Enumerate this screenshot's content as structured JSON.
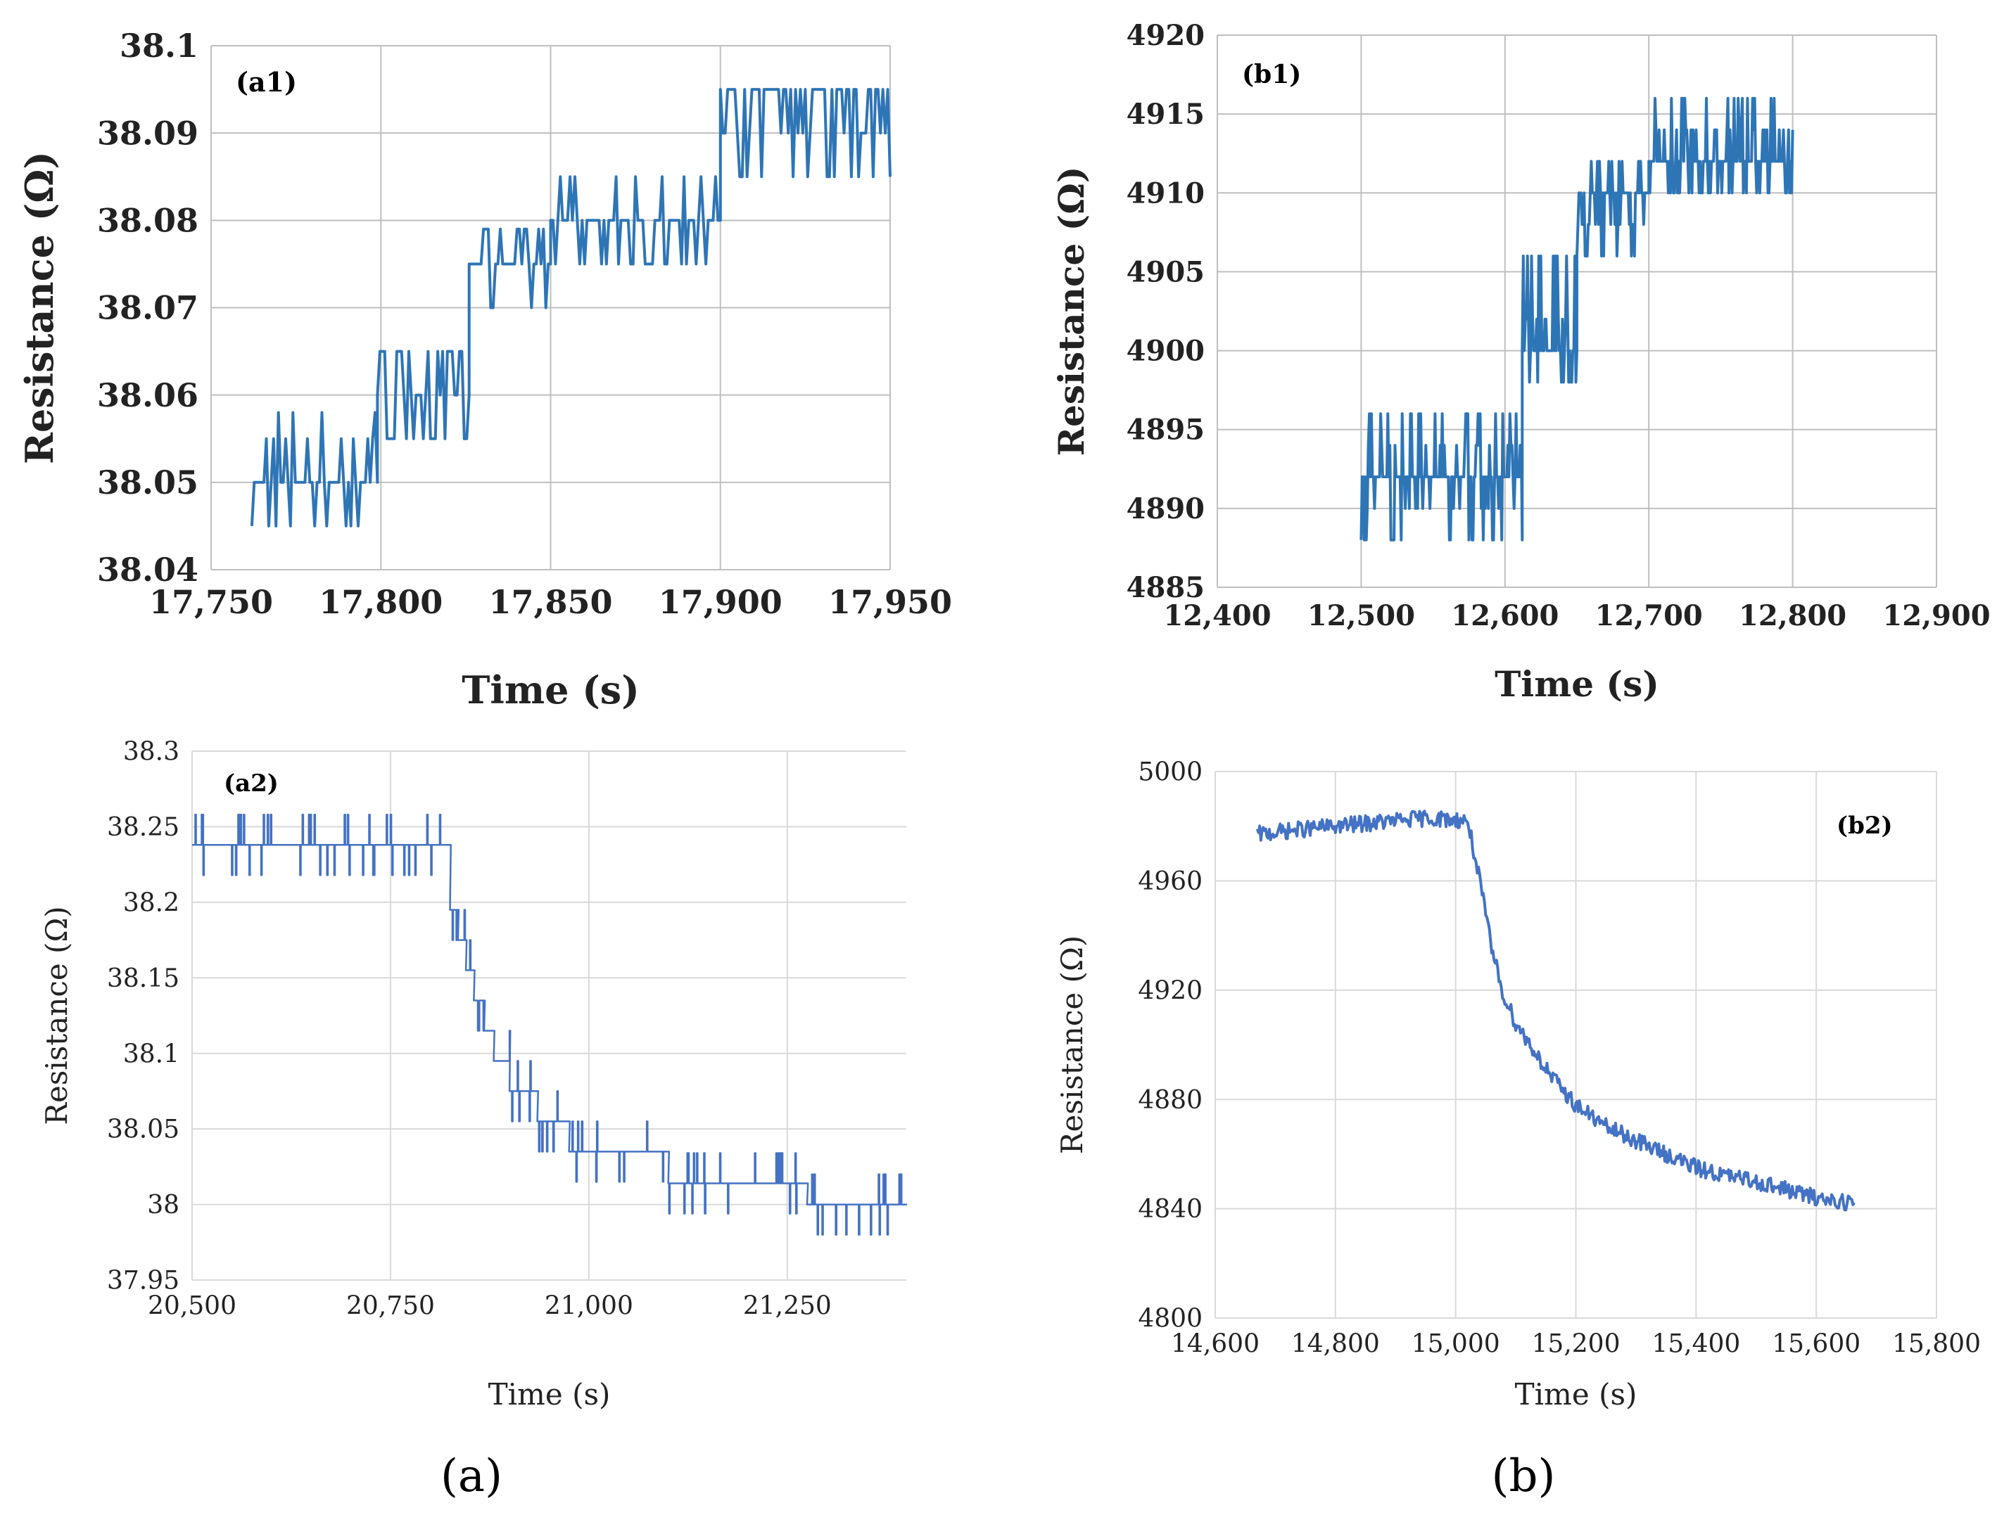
{
  "figure": {
    "caption_a": "(a)",
    "caption_b": "(b)"
  },
  "chart_data": [
    {
      "id": "a1",
      "type": "line",
      "panel_label": "(a1)",
      "xlabel": "Time (s)",
      "ylabel": "Resistance (Ω)",
      "xlim": [
        17750,
        17950
      ],
      "ylim": [
        38.04,
        38.1
      ],
      "xticks": [
        17750,
        17800,
        17850,
        17900,
        17950
      ],
      "xtick_labels": [
        "17,750",
        "17,800",
        "17,850",
        "17,900",
        "17,950"
      ],
      "yticks": [
        38.04,
        38.05,
        38.06,
        38.07,
        38.08,
        38.09,
        38.1
      ],
      "ytick_labels": [
        "38.04",
        "38.05",
        "38.06",
        "38.07",
        "38.08",
        "38.09",
        "38.1"
      ],
      "grid": true,
      "color": "#2e75b6",
      "series": [
        {
          "name": "Resistance",
          "segments": [
            {
              "x0": 17762,
              "x1": 17799,
              "levels": [
                38.045,
                38.05,
                38.055,
                38.058
              ],
              "base": 38.05
            },
            {
              "x0": 17799,
              "x1": 17826,
              "levels": [
                38.055,
                38.06,
                38.065
              ],
              "base": 38.065
            },
            {
              "x0": 17826,
              "x1": 17850,
              "levels": [
                38.07,
                38.075,
                38.079
              ],
              "base": 38.075
            },
            {
              "x0": 17850,
              "x1": 17900,
              "levels": [
                38.075,
                38.08,
                38.085
              ],
              "base": 38.08
            },
            {
              "x0": 17900,
              "x1": 17950,
              "levels": [
                38.085,
                38.09,
                38.095
              ],
              "base": 38.095
            }
          ]
        }
      ]
    },
    {
      "id": "b1",
      "type": "line",
      "panel_label": "(b1)",
      "xlabel": "Time (s)",
      "ylabel": "Resistance (Ω)",
      "xlim": [
        12400,
        12900
      ],
      "ylim": [
        4885,
        4920
      ],
      "xticks": [
        12400,
        12500,
        12600,
        12700,
        12800,
        12900
      ],
      "xtick_labels": [
        "12,400",
        "12,500",
        "12,600",
        "12,700",
        "12,800",
        "12,900"
      ],
      "yticks": [
        4885,
        4890,
        4895,
        4900,
        4905,
        4910,
        4915,
        4920
      ],
      "ytick_labels": [
        "4885",
        "4890",
        "4895",
        "4900",
        "4905",
        "4910",
        "4915",
        "4920"
      ],
      "grid": true,
      "color": "#2e75b6",
      "series": [
        {
          "name": "Resistance",
          "segments": [
            {
              "x0": 12500,
              "x1": 12612,
              "levels": [
                4888,
                4890,
                4892,
                4894,
                4896
              ],
              "base": 4892
            },
            {
              "x0": 12612,
              "x1": 12650,
              "levels": [
                4898,
                4902,
                4906
              ],
              "base": 4900
            },
            {
              "x0": 12650,
              "x1": 12700,
              "levels": [
                4906,
                4908,
                4910,
                4912
              ],
              "base": 4910
            },
            {
              "x0": 12700,
              "x1": 12800,
              "levels": [
                4910,
                4912,
                4914,
                4916
              ],
              "base": 4912
            }
          ]
        }
      ]
    },
    {
      "id": "a2",
      "type": "line",
      "panel_label": "(a2)",
      "xlabel": "Time (s)",
      "ylabel": "Resistance (Ω)",
      "xlim": [
        20500,
        21400
      ],
      "ylim": [
        37.95,
        38.3
      ],
      "xticks": [
        20500,
        20750,
        21000,
        21250
      ],
      "xtick_labels": [
        "20,500",
        "20,750",
        "21,000",
        "21,250"
      ],
      "yticks": [
        37.95,
        38,
        38.05,
        38.1,
        38.15,
        38.2,
        38.25,
        38.3
      ],
      "ytick_labels": [
        "37.95",
        "38",
        "38.05",
        "38.1",
        "38.15",
        "38.2",
        "38.25",
        "38.3"
      ],
      "grid": true,
      "color": "#4472c4",
      "series": [
        {
          "name": "Resistance",
          "levels_sequence": [
            {
              "x0": 20500,
              "x1": 20825,
              "value": 38.238
            },
            {
              "x0": 20825,
              "x1": 20835,
              "value": 38.195
            },
            {
              "x0": 20835,
              "x1": 20845,
              "value": 38.175
            },
            {
              "x0": 20845,
              "x1": 20855,
              "value": 38.155
            },
            {
              "x0": 20855,
              "x1": 20868,
              "value": 38.135
            },
            {
              "x0": 20868,
              "x1": 20880,
              "value": 38.115
            },
            {
              "x0": 20880,
              "x1": 20900,
              "value": 38.095
            },
            {
              "x0": 20900,
              "x1": 20935,
              "value": 38.075
            },
            {
              "x0": 20935,
              "x1": 20975,
              "value": 38.055
            },
            {
              "x0": 20975,
              "x1": 21100,
              "value": 38.035
            },
            {
              "x0": 21100,
              "x1": 21275,
              "value": 38.014
            },
            {
              "x0": 21275,
              "x1": 21400,
              "value": 38.0
            }
          ]
        }
      ]
    },
    {
      "id": "b2",
      "type": "line",
      "panel_label": "(b2)",
      "xlabel": "Time (s)",
      "ylabel": "Resistance (Ω)",
      "xlim": [
        14600,
        15800
      ],
      "ylim": [
        4800,
        5000
      ],
      "xticks": [
        14600,
        14800,
        15000,
        15200,
        15400,
        15600,
        15800
      ],
      "xtick_labels": [
        "14,600",
        "14,800",
        "15,000",
        "15,200",
        "15,400",
        "15,600",
        "15,800"
      ],
      "yticks": [
        4800,
        4840,
        4880,
        4920,
        4960,
        5000
      ],
      "ytick_labels": [
        "4800",
        "4840",
        "4880",
        "4920",
        "4960",
        "5000"
      ],
      "grid": true,
      "color": "#4472c4",
      "series": [
        {
          "name": "Resistance",
          "points": [
            [
              14670,
              4977
            ],
            [
              14750,
              4979
            ],
            [
              14850,
              4981
            ],
            [
              14950,
              4983
            ],
            [
              15020,
              4982
            ],
            [
              15040,
              4960
            ],
            [
              15060,
              4935
            ],
            [
              15080,
              4918
            ],
            [
              15100,
              4908
            ],
            [
              15130,
              4898
            ],
            [
              15160,
              4888
            ],
            [
              15200,
              4878
            ],
            [
              15250,
              4870
            ],
            [
              15300,
              4865
            ],
            [
              15350,
              4860
            ],
            [
              15400,
              4855
            ],
            [
              15450,
              4852
            ],
            [
              15500,
              4850
            ],
            [
              15550,
              4847
            ],
            [
              15600,
              4844
            ],
            [
              15665,
              4842
            ]
          ]
        }
      ]
    }
  ]
}
